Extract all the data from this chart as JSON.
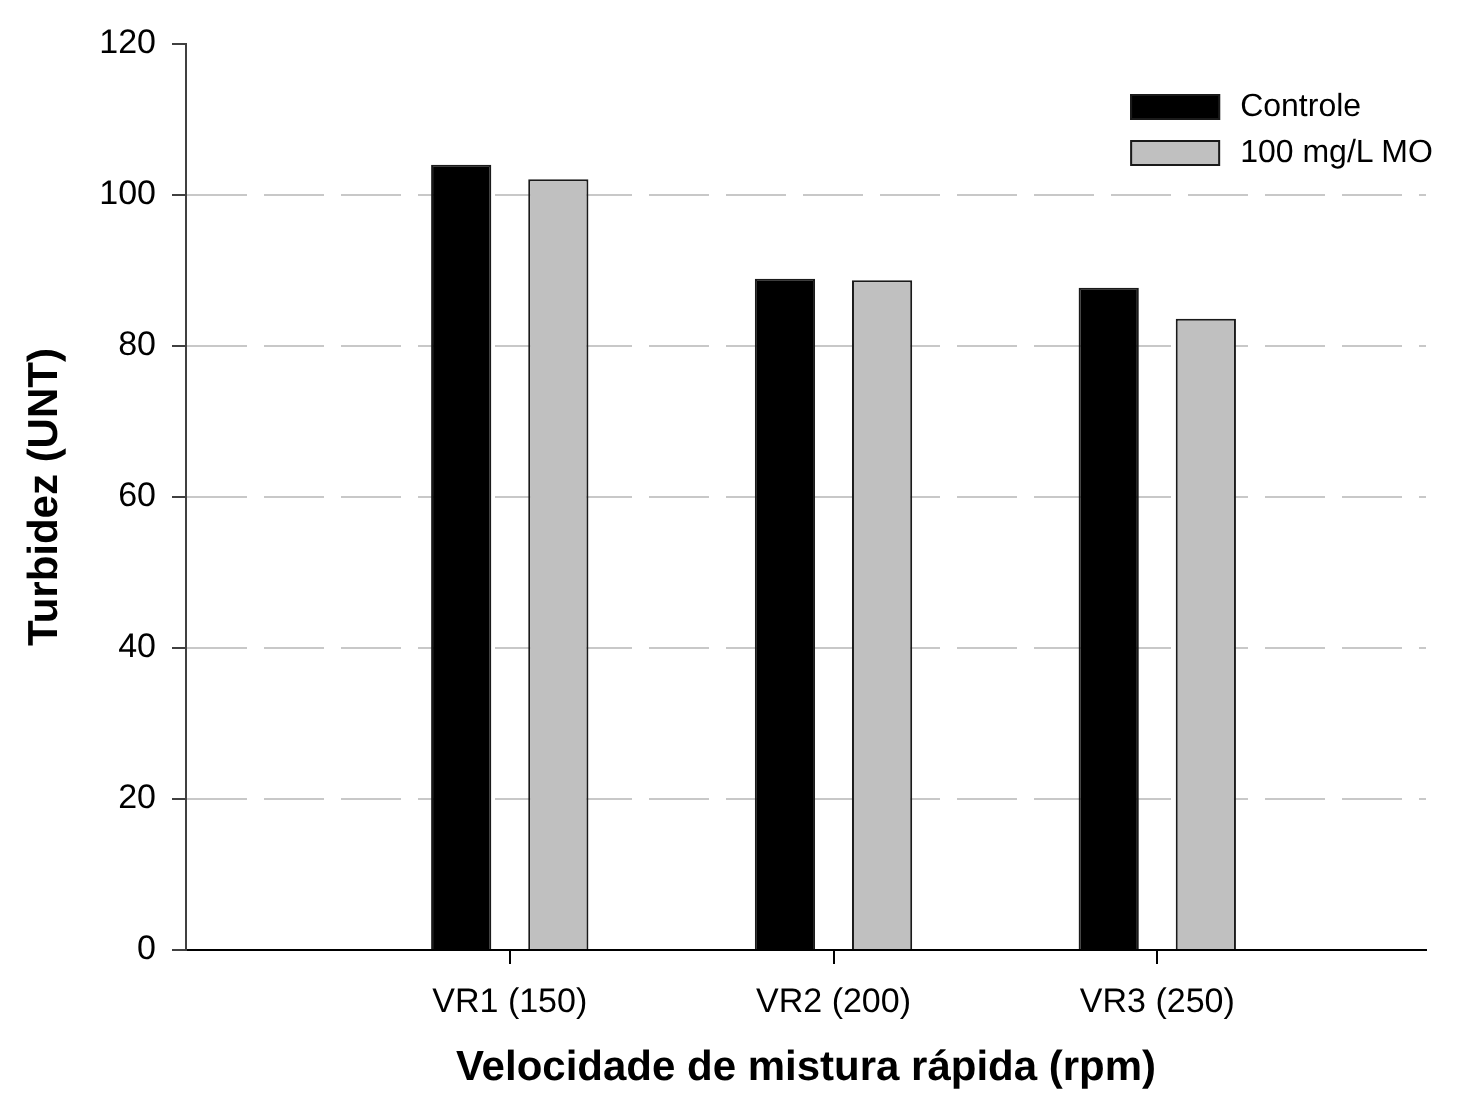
{
  "chart_data": {
    "type": "bar",
    "xlabel": "Velocidade de mistura rápida (rpm)",
    "ylabel": "Turbidez (UNT)",
    "categories": [
      "VR1 (150)",
      "VR2 (200)",
      "VR3 (250)"
    ],
    "series": [
      {
        "name": "Controle",
        "color": "#000000",
        "values": [
          104,
          88.9,
          87.7
        ]
      },
      {
        "name": "100 mg/L MO",
        "color": "#c0c0c0",
        "values": [
          102.1,
          88.7,
          83.6
        ]
      }
    ],
    "ylim": [
      0,
      120
    ],
    "yticks": [
      0,
      20,
      40,
      60,
      80,
      100,
      120
    ],
    "grid": "y",
    "legend": "top right"
  }
}
